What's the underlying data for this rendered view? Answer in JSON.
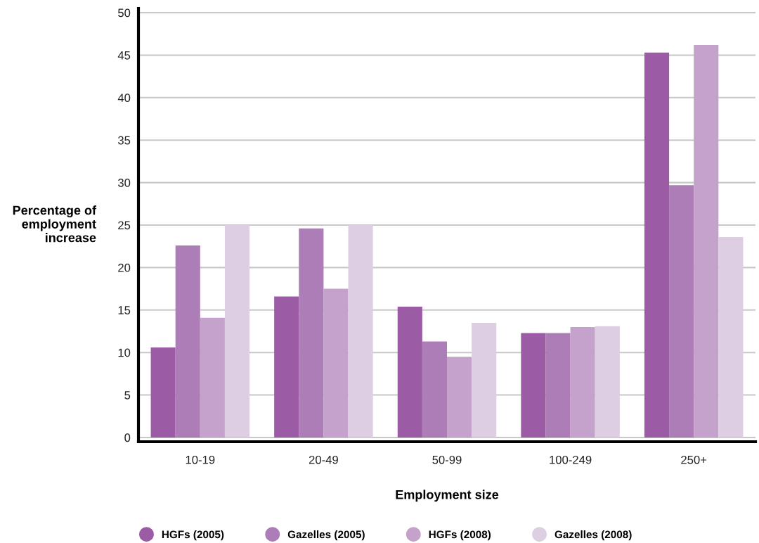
{
  "chart_data": {
    "type": "bar",
    "xlabel": "Employment size",
    "ylabel": "Percentage of\nemployment\nincrease",
    "categories": [
      "10-19",
      "20-49",
      "50-99",
      "100-249",
      "250+"
    ],
    "series": [
      {
        "name": "HGFs (2005)",
        "color": "#9b5ca5",
        "values": [
          10.6,
          16.6,
          15.4,
          12.3,
          45.3
        ]
      },
      {
        "name": "Gazelles (2005)",
        "color": "#ad7db7",
        "values": [
          22.6,
          24.6,
          11.3,
          12.3,
          29.7
        ]
      },
      {
        "name": "HGFs (2008)",
        "color": "#c4a2cb",
        "values": [
          14.1,
          17.5,
          9.5,
          13.0,
          46.2
        ]
      },
      {
        "name": "Gazelles (2008)",
        "color": "#ddcee3",
        "values": [
          25,
          25,
          13.5,
          13.1,
          23.6
        ]
      }
    ],
    "ylim": [
      -0.5,
      50.5
    ],
    "yticks": [
      0,
      5,
      10,
      15,
      20,
      25,
      30,
      35,
      40,
      45,
      50
    ],
    "grid": "y",
    "legend": "bottom",
    "marker": "circle"
  }
}
